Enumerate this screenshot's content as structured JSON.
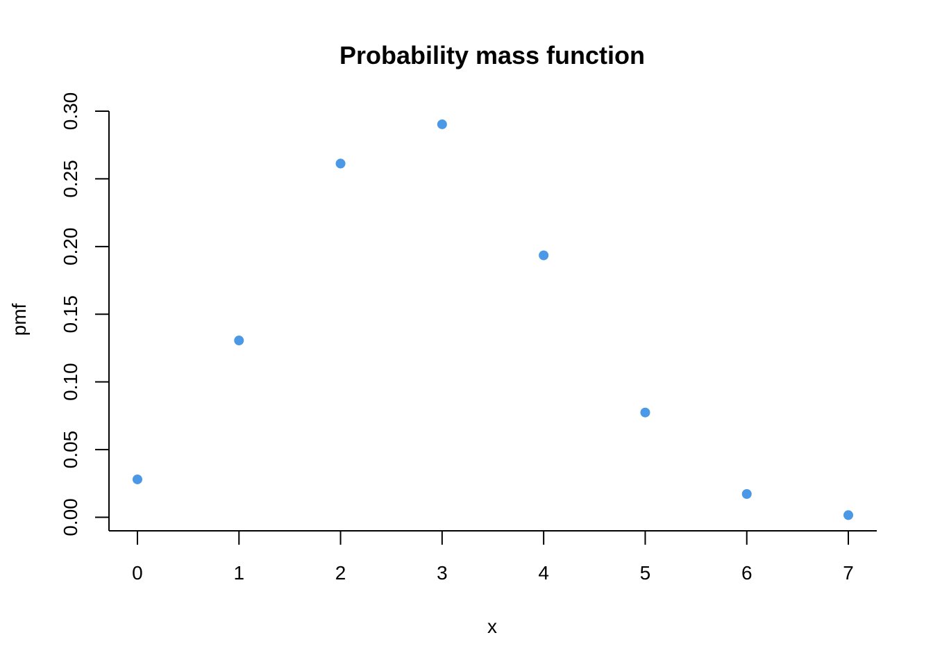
{
  "chart_data": {
    "type": "scatter",
    "title": "Probability mass function",
    "xlabel": "x",
    "ylabel": "pmf",
    "x": [
      0,
      1,
      2,
      3,
      4,
      5,
      6,
      7
    ],
    "y": [
      0.028,
      0.1306,
      0.2613,
      0.2903,
      0.1935,
      0.0774,
      0.0172,
      0.0016
    ],
    "xticks": [
      "0",
      "1",
      "2",
      "3",
      "4",
      "5",
      "6",
      "7"
    ],
    "yticks": [
      "0.00",
      "0.05",
      "0.10",
      "0.15",
      "0.20",
      "0.25",
      "0.30"
    ],
    "xlim": [
      -0.28,
      7.28
    ],
    "ylim": [
      -0.01,
      0.3
    ],
    "marker_color": "#4a98e6",
    "grid": false,
    "legend": "none"
  }
}
